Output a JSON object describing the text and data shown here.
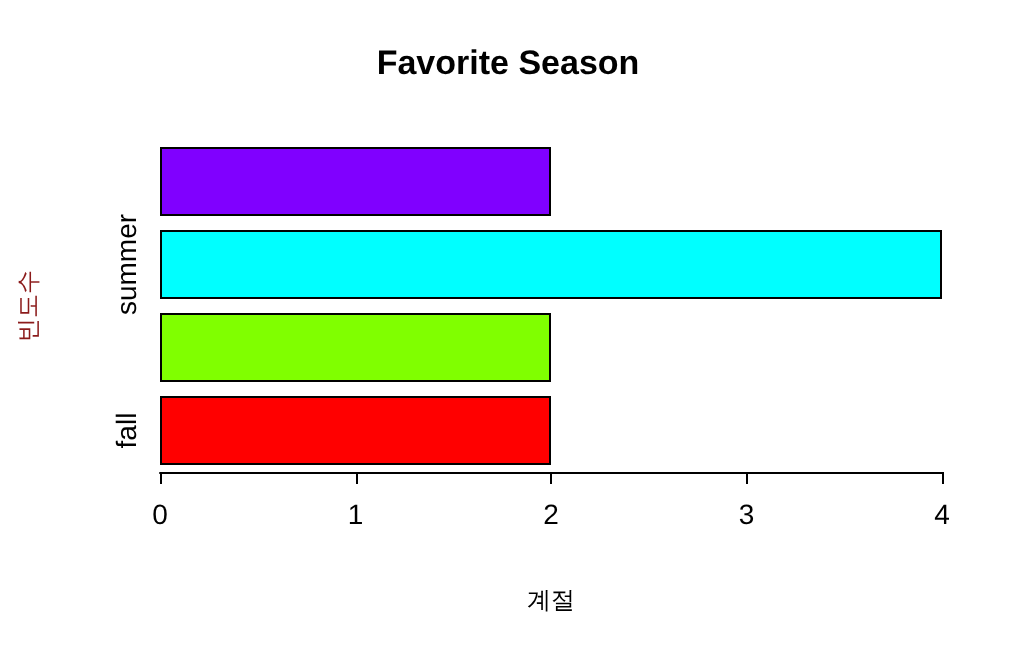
{
  "chart_data": {
    "type": "bar",
    "orientation": "horizontal",
    "title": "Favorite Season",
    "xlabel": "계절",
    "ylabel": "빈도수",
    "categories": [
      null,
      "summer",
      null,
      "fall"
    ],
    "values": [
      2,
      4,
      2,
      2
    ],
    "colors": [
      "#8000ff",
      "#00ffff",
      "#80ff00",
      "#ff0000"
    ],
    "xlim": [
      0,
      4
    ],
    "xticks": [
      0,
      1,
      2,
      3,
      4
    ]
  }
}
